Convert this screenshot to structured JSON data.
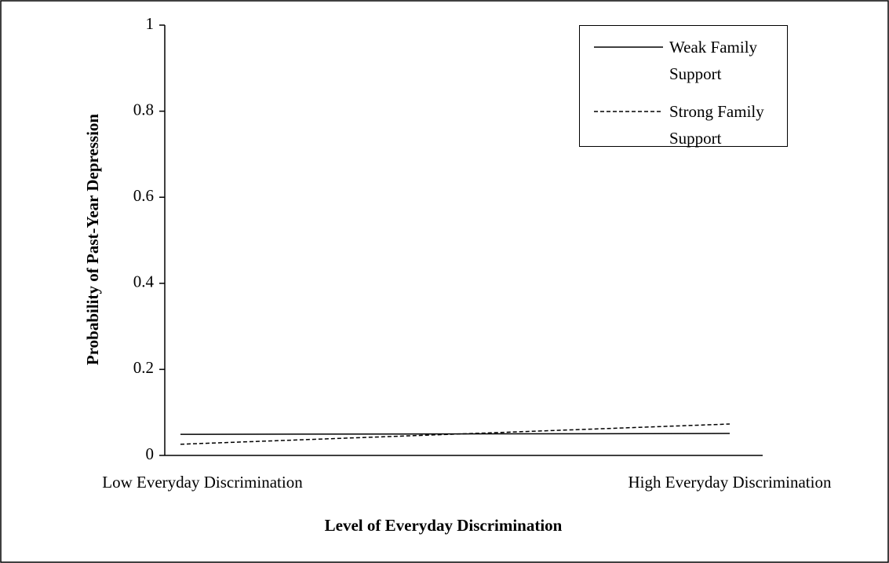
{
  "chart_data": {
    "type": "line",
    "y_label": "Probability of Past-Year Depression",
    "x_label": "Level of Everyday Discrimination",
    "categories": [
      "Low Everyday Discrimination",
      "High Everyday Discrimination"
    ],
    "series": [
      {
        "name": "Weak Family Support",
        "color": "#000000",
        "dash": "solid",
        "values": [
          0.049,
          0.051
        ]
      },
      {
        "name": "Strong Family Support",
        "color": "#000000",
        "dash": "dashed",
        "values": [
          0.026,
          0.073
        ]
      }
    ],
    "ylim": [
      0,
      1
    ],
    "yticks": [
      0,
      0.2,
      0.4,
      0.6,
      0.8,
      1
    ],
    "legend": "upper right"
  }
}
